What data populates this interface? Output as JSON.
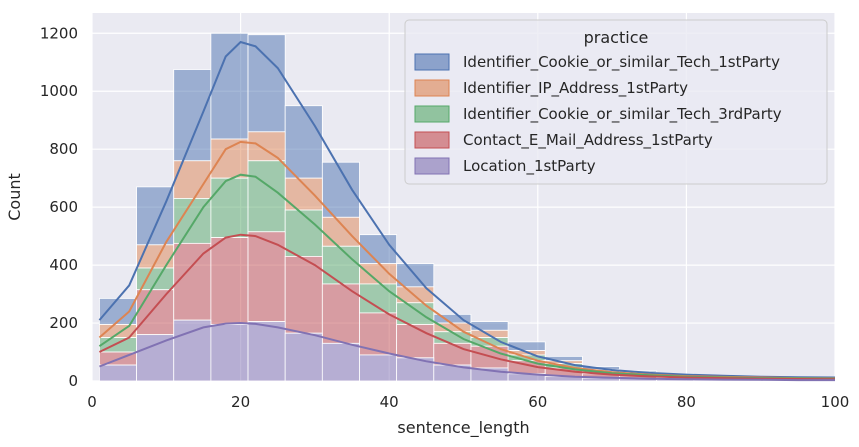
{
  "chart_data": {
    "type": "bar",
    "stacked": true,
    "xlabel": "sentence_length",
    "ylabel": "Count",
    "xlim": [
      0,
      100
    ],
    "ylim": [
      0,
      1270
    ],
    "xticks": [
      0,
      20,
      40,
      60,
      80,
      100
    ],
    "yticks": [
      0,
      200,
      400,
      600,
      800,
      1000,
      1200
    ],
    "grid": true,
    "legend": {
      "title": "practice",
      "placement": "top-right"
    },
    "bins": [
      1,
      6,
      11,
      16,
      21,
      26,
      31,
      36,
      41,
      46,
      51,
      56,
      61,
      66,
      71,
      76,
      81,
      86,
      91,
      96,
      101
    ],
    "series": [
      {
        "name": "Identifier_Cookie_or_similar_Tech_1stParty",
        "color": "#4c72b0",
        "totals": [
          285,
          670,
          1075,
          1200,
          1195,
          950,
          755,
          505,
          405,
          230,
          205,
          135,
          85,
          50,
          35,
          25,
          20,
          15,
          10,
          10
        ],
        "kde": [
          [
            1,
            210
          ],
          [
            5,
            330
          ],
          [
            10,
            620
          ],
          [
            15,
            930
          ],
          [
            18,
            1120
          ],
          [
            20,
            1170
          ],
          [
            22,
            1155
          ],
          [
            25,
            1080
          ],
          [
            30,
            880
          ],
          [
            35,
            660
          ],
          [
            40,
            470
          ],
          [
            45,
            320
          ],
          [
            50,
            210
          ],
          [
            55,
            135
          ],
          [
            60,
            85
          ],
          [
            65,
            55
          ],
          [
            70,
            38
          ],
          [
            75,
            28
          ],
          [
            80,
            22
          ],
          [
            85,
            18
          ],
          [
            90,
            15
          ],
          [
            95,
            13
          ],
          [
            100,
            12
          ]
        ]
      },
      {
        "name": "Identifier_IP_Address_1stParty",
        "color": "#dd8452",
        "totals": [
          195,
          470,
          760,
          835,
          860,
          700,
          565,
          405,
          325,
          200,
          175,
          105,
          70,
          40,
          30,
          20,
          15,
          12,
          8,
          8
        ],
        "kde": [
          [
            1,
            150
          ],
          [
            5,
            240
          ],
          [
            10,
            480
          ],
          [
            15,
            680
          ],
          [
            18,
            800
          ],
          [
            20,
            825
          ],
          [
            22,
            820
          ],
          [
            25,
            770
          ],
          [
            30,
            640
          ],
          [
            35,
            500
          ],
          [
            40,
            370
          ],
          [
            45,
            260
          ],
          [
            50,
            170
          ],
          [
            55,
            110
          ],
          [
            60,
            70
          ],
          [
            65,
            45
          ],
          [
            70,
            30
          ],
          [
            75,
            22
          ],
          [
            80,
            17
          ],
          [
            85,
            14
          ],
          [
            90,
            12
          ],
          [
            95,
            10
          ],
          [
            100,
            9
          ]
        ]
      },
      {
        "name": "Identifier_Cookie_or_similar_Tech_3rdParty",
        "color": "#55a868",
        "totals": [
          150,
          390,
          630,
          700,
          760,
          590,
          465,
          335,
          270,
          170,
          150,
          90,
          60,
          35,
          25,
          18,
          13,
          10,
          7,
          7
        ],
        "kde": [
          [
            1,
            120
          ],
          [
            5,
            190
          ],
          [
            10,
            400
          ],
          [
            15,
            600
          ],
          [
            18,
            690
          ],
          [
            20,
            712
          ],
          [
            22,
            705
          ],
          [
            25,
            650
          ],
          [
            30,
            540
          ],
          [
            35,
            420
          ],
          [
            40,
            310
          ],
          [
            45,
            220
          ],
          [
            50,
            145
          ],
          [
            55,
            95
          ],
          [
            60,
            60
          ],
          [
            65,
            40
          ],
          [
            70,
            27
          ],
          [
            75,
            20
          ],
          [
            80,
            15
          ],
          [
            85,
            12
          ],
          [
            90,
            10
          ],
          [
            95,
            9
          ],
          [
            100,
            8
          ]
        ]
      },
      {
        "name": "Contact_E_Mail_Address_1stParty",
        "color": "#c44e52",
        "totals": [
          100,
          315,
          475,
          495,
          515,
          430,
          335,
          235,
          195,
          130,
          120,
          70,
          45,
          25,
          18,
          12,
          9,
          7,
          5,
          5
        ],
        "kde": [
          [
            1,
            100
          ],
          [
            5,
            150
          ],
          [
            10,
            300
          ],
          [
            15,
            440
          ],
          [
            18,
            495
          ],
          [
            20,
            505
          ],
          [
            22,
            500
          ],
          [
            25,
            470
          ],
          [
            30,
            400
          ],
          [
            35,
            310
          ],
          [
            40,
            230
          ],
          [
            45,
            165
          ],
          [
            50,
            110
          ],
          [
            55,
            75
          ],
          [
            60,
            48
          ],
          [
            65,
            32
          ],
          [
            70,
            22
          ],
          [
            75,
            16
          ],
          [
            80,
            12
          ],
          [
            85,
            10
          ],
          [
            90,
            8
          ],
          [
            95,
            7
          ],
          [
            100,
            6
          ]
        ]
      },
      {
        "name": "Location_1stParty",
        "color": "#8172b3",
        "totals": [
          55,
          160,
          210,
          195,
          205,
          165,
          130,
          90,
          80,
          55,
          45,
          25,
          15,
          10,
          8,
          5,
          4,
          3,
          2,
          2
        ],
        "kde": [
          [
            1,
            50
          ],
          [
            5,
            90
          ],
          [
            10,
            140
          ],
          [
            15,
            185
          ],
          [
            18,
            198
          ],
          [
            20,
            200
          ],
          [
            22,
            197
          ],
          [
            25,
            185
          ],
          [
            30,
            158
          ],
          [
            35,
            125
          ],
          [
            40,
            95
          ],
          [
            45,
            68
          ],
          [
            50,
            47
          ],
          [
            55,
            32
          ],
          [
            60,
            22
          ],
          [
            65,
            15
          ],
          [
            70,
            11
          ],
          [
            75,
            8
          ],
          [
            80,
            6
          ],
          [
            85,
            5
          ],
          [
            90,
            4
          ],
          [
            95,
            3
          ],
          [
            100,
            3
          ]
        ]
      }
    ]
  }
}
